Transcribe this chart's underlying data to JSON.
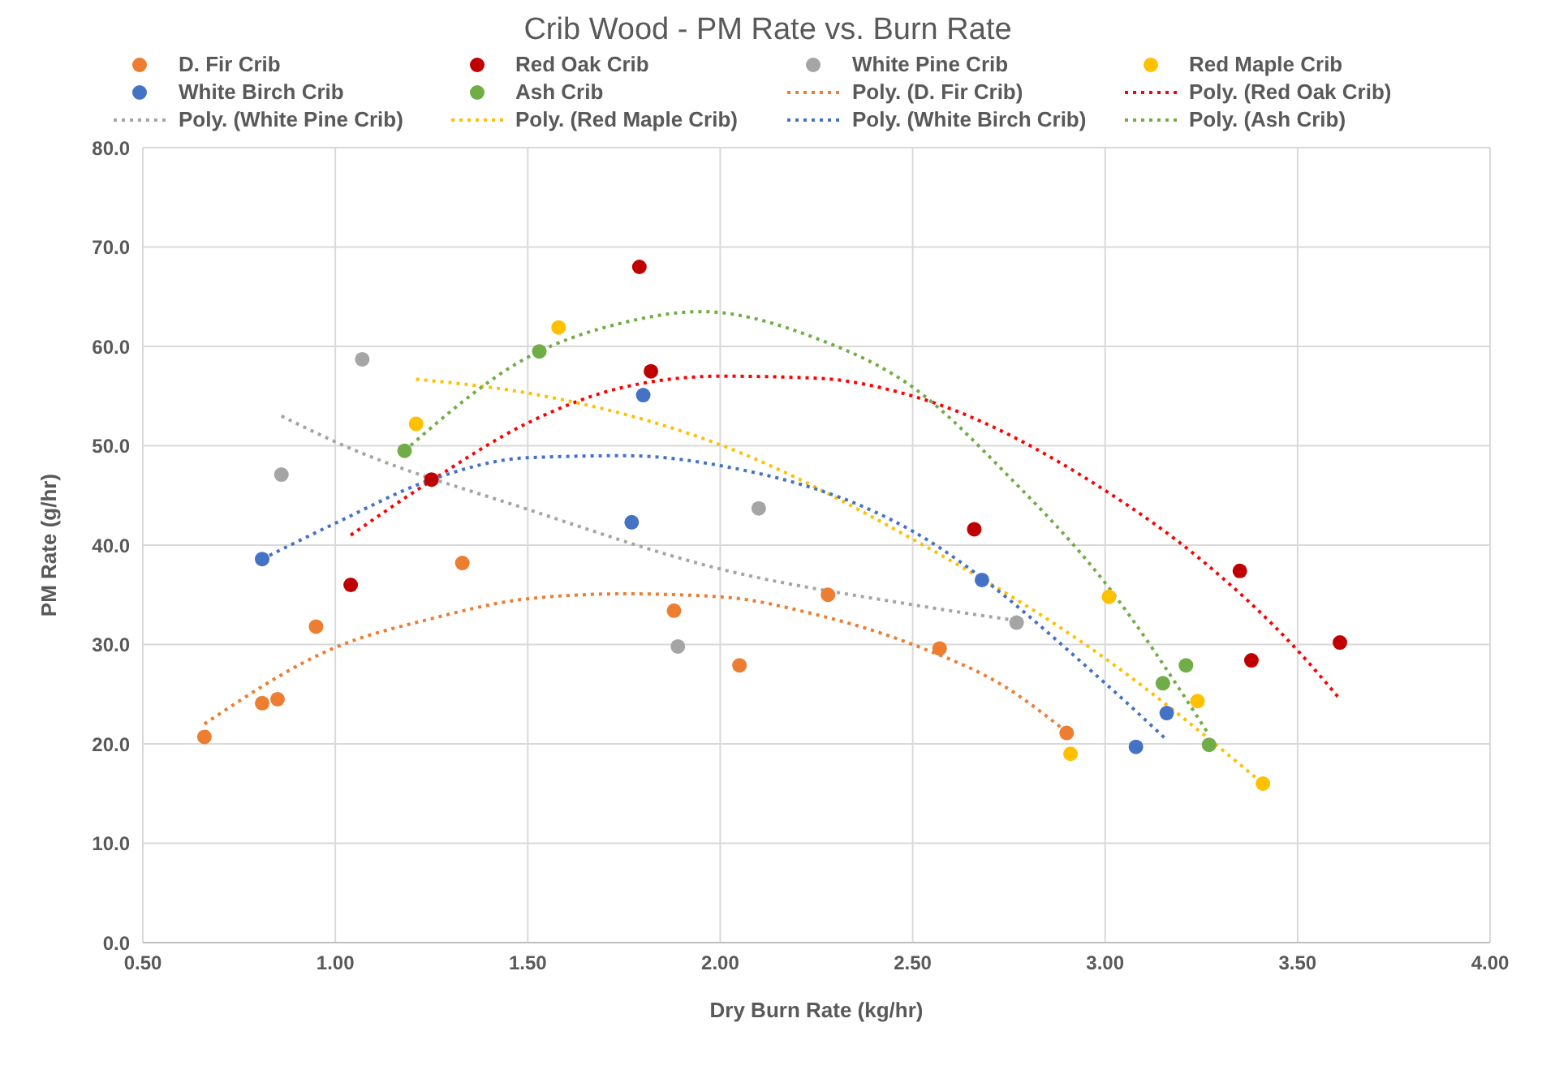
{
  "chart_data": {
    "type": "scatter",
    "title": "Crib Wood - PM Rate vs. Burn Rate",
    "xlabel": "Dry Burn Rate (kg/hr)",
    "ylabel": "PM Rate (g/hr)",
    "legend": "top",
    "grid": true,
    "marker": "circle",
    "xlim": [
      0.5,
      4.0
    ],
    "ylim": [
      0,
      80
    ],
    "xticks": [
      {
        "value": 0.5,
        "label": "0.50"
      },
      {
        "value": 1,
        "label": "1.00"
      },
      {
        "value": 1.5,
        "label": "1.50"
      },
      {
        "value": 2,
        "label": "2.00"
      },
      {
        "value": 2.5,
        "label": "2.50"
      },
      {
        "value": 3,
        "label": "3.00"
      },
      {
        "value": 3.5,
        "label": "3.50"
      },
      {
        "value": 4,
        "label": "4.00"
      }
    ],
    "yticks": [
      {
        "value": 0,
        "label": "0.0"
      },
      {
        "value": 10,
        "label": "10.0"
      },
      {
        "value": 20,
        "label": "20.0"
      },
      {
        "value": 30,
        "label": "30.0"
      },
      {
        "value": 40,
        "label": "40.0"
      },
      {
        "value": 50,
        "label": "50.0"
      },
      {
        "value": 60,
        "label": "60.0"
      },
      {
        "value": 70,
        "label": "70.0"
      },
      {
        "value": 80,
        "label": "80.0"
      }
    ],
    "series": [
      {
        "name": "D. Fir Crib",
        "color": "#ed7d31",
        "x": [
          0.66,
          0.81,
          0.85,
          0.95,
          1.33,
          1.88,
          2.05,
          2.28,
          2.57,
          2.9
        ],
        "values": [
          20.7,
          24.1,
          24.5,
          31.8,
          38.2,
          33.4,
          27.9,
          35.0,
          29.6,
          21.1
        ]
      },
      {
        "name": "Red Oak Crib",
        "color": "#c00000",
        "x": [
          1.04,
          1.25,
          1.79,
          1.82,
          2.66,
          3.35,
          3.38,
          3.61
        ],
        "values": [
          36.0,
          46.6,
          68.0,
          57.5,
          41.6,
          37.4,
          28.4,
          30.2
        ]
      },
      {
        "name": "White Pine Crib",
        "color": "#a5a5a5",
        "x": [
          0.86,
          1.07,
          1.89,
          2.1,
          2.77
        ],
        "values": [
          47.1,
          58.7,
          29.8,
          43.7,
          32.2
        ]
      },
      {
        "name": "Red Maple Crib",
        "color": "#ffc000",
        "x": [
          1.21,
          1.58,
          2.91,
          3.01,
          3.24,
          3.41
        ],
        "values": [
          52.2,
          61.9,
          19.0,
          34.8,
          24.3,
          16.0
        ]
      },
      {
        "name": "White Birch Crib",
        "color": "#4472c4",
        "x": [
          0.81,
          1.77,
          1.8,
          2.68,
          3.08,
          3.16
        ],
        "values": [
          38.6,
          42.3,
          55.1,
          36.5,
          19.7,
          23.1
        ]
      },
      {
        "name": "Ash Crib",
        "color": "#70ad47",
        "x": [
          1.18,
          1.53,
          3.15,
          3.21,
          3.27
        ],
        "values": [
          49.5,
          59.5,
          26.1,
          27.9,
          19.9
        ]
      },
      {
        "name": "Poly. (D. Fir Crib)",
        "type": "line",
        "line_style": "dotted",
        "marker": "none",
        "color": "#ed7d31",
        "x": [
          0.66,
          1.0,
          1.25,
          1.5,
          1.75,
          2.0,
          2.25,
          2.5,
          2.75,
          2.9
        ],
        "values": [
          22.0,
          29.7,
          32.6,
          34.6,
          35.1,
          34.8,
          33.0,
          30.0,
          25.5,
          21.2
        ]
      },
      {
        "name": "Poly. (Red Oak Crib)",
        "type": "line",
        "line_style": "dotted",
        "marker": "none",
        "color": "#ff0000",
        "x": [
          1.04,
          1.25,
          1.5,
          1.75,
          2.0,
          2.25,
          2.5,
          3.0,
          3.25,
          3.5,
          3.61
        ],
        "values": [
          41.0,
          46.5,
          52.3,
          55.9,
          57.0,
          56.8,
          55.0,
          45.5,
          38.5,
          29.4,
          24.5
        ]
      },
      {
        "name": "Poly. (White Pine Crib)",
        "type": "line",
        "line_style": "dotted",
        "marker": "none",
        "color": "#a5a5a5",
        "x": [
          0.86,
          1.0,
          1.5,
          2.0,
          2.5,
          2.77
        ],
        "values": [
          53.0,
          50.4,
          43.6,
          37.6,
          34.0,
          32.4
        ]
      },
      {
        "name": "Poly. (Red Maple Crib)",
        "type": "line",
        "line_style": "dotted",
        "marker": "none",
        "color": "#ffc000",
        "x": [
          1.21,
          1.5,
          2.0,
          2.5,
          3.0,
          3.41
        ],
        "values": [
          56.7,
          55.3,
          50.1,
          40.6,
          28.6,
          16.0
        ]
      },
      {
        "name": "Poly. (White Birch Crib)",
        "type": "line",
        "line_style": "dotted",
        "marker": "none",
        "color": "#4472c4",
        "x": [
          0.81,
          1.0,
          1.25,
          1.5,
          1.75,
          2.0,
          2.5,
          3.0,
          3.16
        ],
        "values": [
          38.6,
          42.2,
          46.6,
          48.8,
          49.0,
          48.0,
          41.4,
          26.1,
          20.4
        ]
      },
      {
        "name": "Poly. (Ash Crib)",
        "type": "line",
        "line_style": "dotted",
        "marker": "none",
        "color": "#70ad47",
        "x": [
          1.18,
          1.5,
          1.75,
          1.95,
          2.25,
          2.5,
          2.75,
          3.0,
          3.27
        ],
        "values": [
          49.5,
          58.9,
          62.4,
          63.5,
          60.8,
          55.9,
          46.9,
          36.2,
          20.9
        ]
      }
    ]
  }
}
